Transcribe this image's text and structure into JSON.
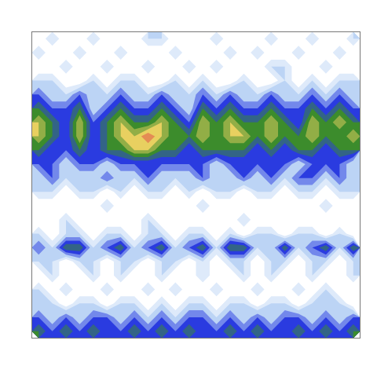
{
  "chart_data": {
    "type": "contour",
    "tick_labels": false,
    "cells": [
      [
        0,
        1,
        0,
        0,
        1,
        0,
        0,
        0,
        1,
        1,
        0,
        0,
        0,
        1,
        0,
        0,
        0,
        1,
        0,
        0,
        1,
        0,
        0,
        1
      ],
      [
        1,
        0,
        0,
        1,
        0,
        0,
        1,
        0,
        0,
        0,
        1,
        0,
        0,
        0,
        1,
        0,
        1,
        0,
        0,
        1,
        0,
        0,
        1,
        0
      ],
      [
        0,
        0,
        1,
        0,
        0,
        1,
        0,
        0,
        1,
        0,
        0,
        1,
        0,
        1,
        0,
        0,
        0,
        1,
        1,
        0,
        0,
        1,
        0,
        0
      ],
      [
        1,
        1,
        0,
        0,
        1,
        0,
        1,
        1,
        0,
        0,
        1,
        0,
        1,
        0,
        0,
        1,
        0,
        0,
        1,
        0,
        1,
        0,
        1,
        1
      ],
      [
        2,
        1,
        1,
        2,
        1,
        1,
        2,
        1,
        1,
        2,
        1,
        1,
        2,
        1,
        2,
        1,
        1,
        2,
        1,
        1,
        2,
        1,
        2,
        1
      ],
      [
        3,
        2,
        2,
        3,
        1,
        2,
        3,
        2,
        2,
        3,
        2,
        1,
        3,
        2,
        3,
        2,
        2,
        3,
        2,
        2,
        3,
        2,
        3,
        2
      ],
      [
        4,
        3,
        2,
        4,
        2,
        3,
        4,
        3,
        3,
        4,
        3,
        2,
        4,
        3,
        4,
        3,
        3,
        4,
        3,
        2,
        4,
        3,
        4,
        3
      ],
      [
        4,
        3,
        2,
        4,
        2,
        3,
        4,
        4,
        5,
        4,
        3,
        3,
        4,
        3,
        4,
        4,
        3,
        4,
        3,
        3,
        4,
        3,
        3,
        4
      ],
      [
        3,
        2,
        2,
        3,
        2,
        3,
        3,
        4,
        4,
        3,
        3,
        2,
        3,
        3,
        3,
        3,
        2,
        3,
        2,
        3,
        3,
        2,
        3,
        3
      ],
      [
        2,
        2,
        1,
        2,
        2,
        1,
        2,
        2,
        2,
        2,
        2,
        2,
        2,
        1,
        2,
        2,
        2,
        2,
        2,
        1,
        2,
        2,
        2,
        1
      ],
      [
        1,
        2,
        1,
        1,
        1,
        2,
        1,
        1,
        2,
        1,
        1,
        1,
        2,
        1,
        1,
        2,
        1,
        2,
        1,
        2,
        2,
        1,
        2,
        1
      ],
      [
        1,
        1,
        0,
        1,
        1,
        0,
        1,
        0,
        1,
        1,
        0,
        1,
        0,
        1,
        1,
        0,
        1,
        1,
        0,
        1,
        1,
        0,
        1,
        1
      ],
      [
        0,
        0,
        0,
        0,
        0,
        1,
        0,
        0,
        0,
        0,
        0,
        0,
        1,
        0,
        0,
        0,
        0,
        0,
        0,
        0,
        0,
        1,
        0,
        0
      ],
      [
        0,
        0,
        1,
        0,
        0,
        0,
        0,
        0,
        1,
        0,
        0,
        0,
        0,
        0,
        0,
        1,
        0,
        0,
        0,
        0,
        0,
        0,
        0,
        0
      ],
      [
        1,
        0,
        1,
        1,
        0,
        1,
        1,
        0,
        1,
        1,
        0,
        1,
        1,
        0,
        1,
        0,
        1,
        1,
        0,
        1,
        1,
        0,
        1,
        0
      ],
      [
        2,
        1,
        3,
        3,
        1,
        2,
        3,
        1,
        2,
        3,
        1,
        2,
        3,
        1,
        3,
        3,
        1,
        1,
        3,
        1,
        2,
        3,
        1,
        3
      ],
      [
        1,
        1,
        0,
        1,
        1,
        0,
        1,
        1,
        0,
        1,
        1,
        0,
        1,
        0,
        1,
        1,
        0,
        1,
        1,
        0,
        1,
        1,
        0,
        1
      ],
      [
        0,
        1,
        0,
        0,
        1,
        0,
        1,
        0,
        0,
        1,
        0,
        0,
        1,
        0,
        0,
        1,
        0,
        1,
        0,
        0,
        1,
        0,
        0,
        1
      ],
      [
        1,
        0,
        1,
        0,
        0,
        1,
        0,
        0,
        1,
        0,
        1,
        0,
        0,
        1,
        0,
        0,
        1,
        0,
        0,
        1,
        0,
        1,
        0,
        0
      ],
      [
        1,
        1,
        0,
        1,
        1,
        0,
        1,
        1,
        0,
        1,
        0,
        1,
        1,
        0,
        1,
        1,
        0,
        1,
        1,
        0,
        1,
        1,
        1,
        0
      ],
      [
        2,
        1,
        2,
        1,
        2,
        2,
        1,
        2,
        1,
        2,
        1,
        2,
        2,
        1,
        2,
        1,
        2,
        1,
        2,
        2,
        1,
        2,
        1,
        2
      ],
      [
        3,
        2,
        3,
        2,
        3,
        2,
        2,
        3,
        2,
        3,
        2,
        3,
        2,
        2,
        3,
        2,
        3,
        2,
        2,
        3,
        2,
        3,
        2,
        3
      ]
    ]
  }
}
